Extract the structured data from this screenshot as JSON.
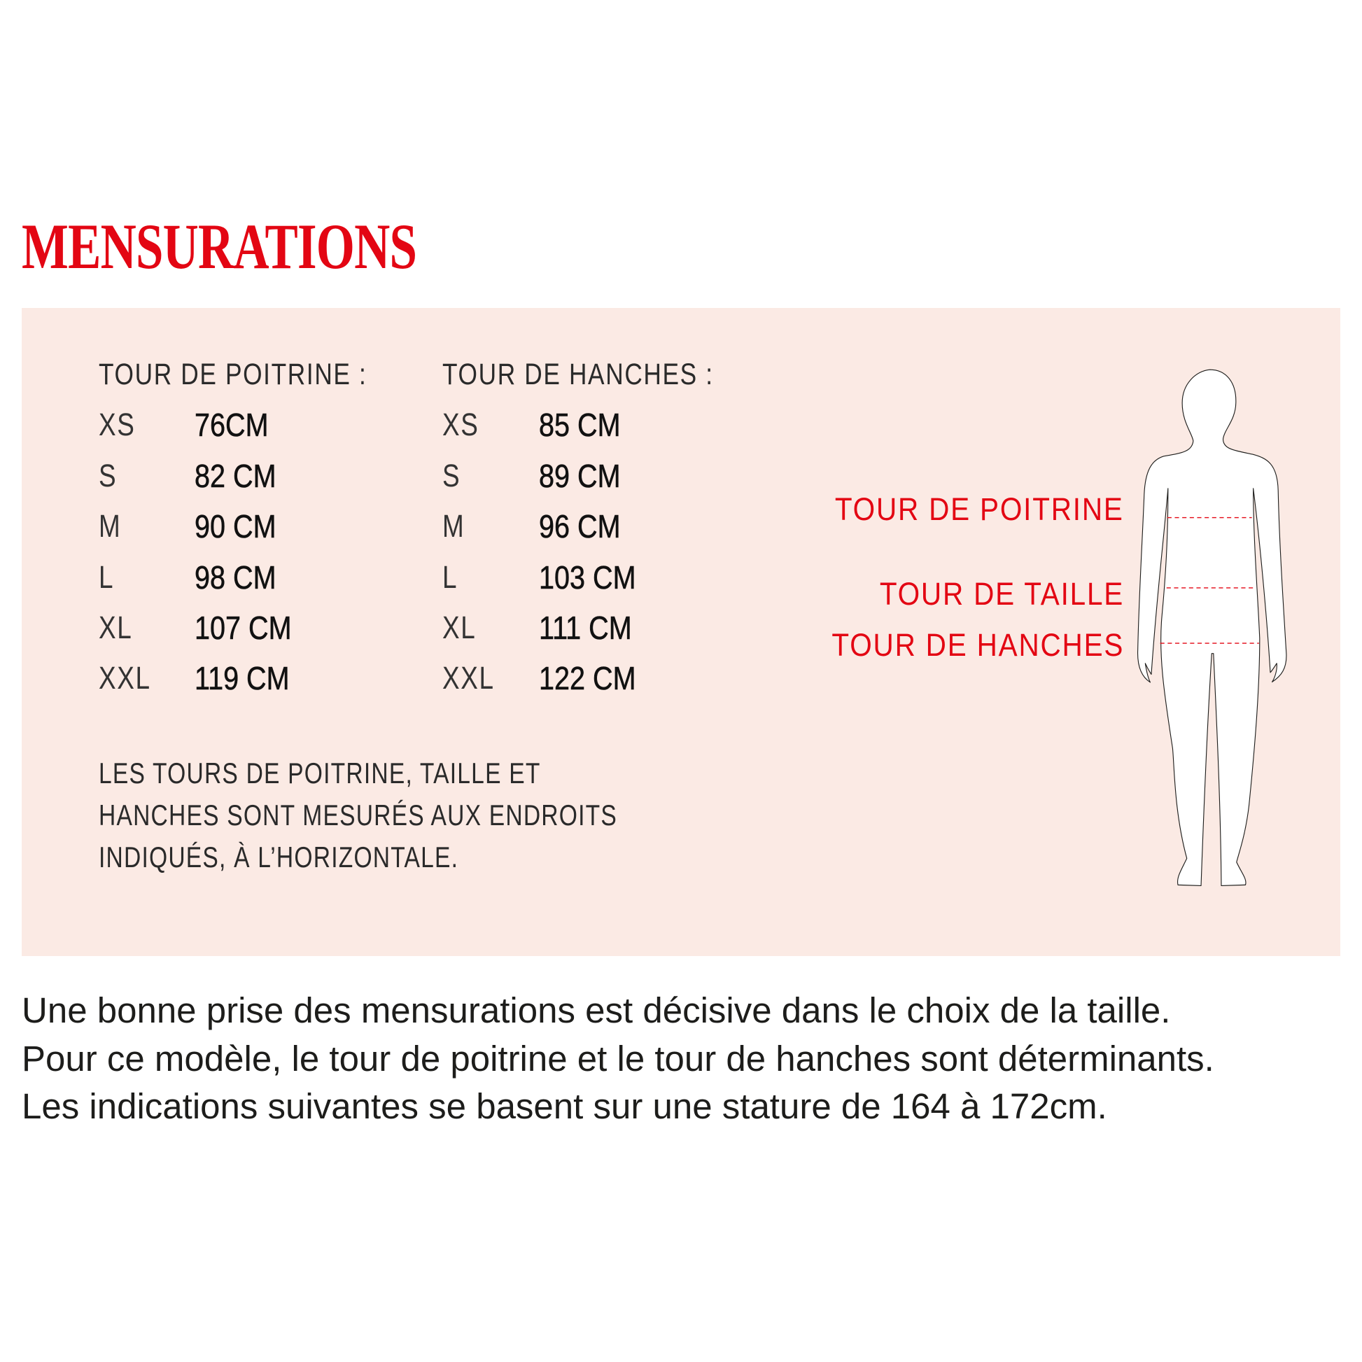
{
  "title": "MENSURATIONS",
  "colors": {
    "accent": "#e30613",
    "panel_bg": "#fbeae4",
    "text": "#1d1d1b"
  },
  "chest_table": {
    "header": "TOUR DE POITRINE :",
    "rows": [
      {
        "size": "XS",
        "value": "76CM"
      },
      {
        "size": "S",
        "value": "82 CM"
      },
      {
        "size": "M",
        "value": "90 CM"
      },
      {
        "size": "L",
        "value": "98 CM"
      },
      {
        "size": "XL",
        "value": "107 CM"
      },
      {
        "size": "XXL",
        "value": "119 CM"
      }
    ]
  },
  "hips_table": {
    "header": "TOUR DE HANCHES :",
    "rows": [
      {
        "size": "XS",
        "value": "85 CM"
      },
      {
        "size": "S",
        "value": "89 CM"
      },
      {
        "size": "M",
        "value": "96 CM"
      },
      {
        "size": "L",
        "value": "103 CM"
      },
      {
        "size": "XL",
        "value": "111 CM"
      },
      {
        "size": "XXL",
        "value": "122 CM"
      }
    ]
  },
  "note": [
    "LES TOURS DE POITRINE, TAILLE ET",
    "HANCHES SONT MESURÉS AUX ENDROITS",
    "INDIQUÉS, À  L’HORIZONTALE."
  ],
  "figure_labels": {
    "chest": "TOUR DE POITRINE",
    "waist": "TOUR DE TAILLE",
    "hips": "TOUR DE HANCHES"
  },
  "figure_icon": "body-silhouette-icon",
  "paragraph": [
    "Une bonne prise des mensurations est décisive dans le choix de la taille.",
    "Pour ce modèle, le tour de poitrine et le tour de hanches sont déterminants.",
    "Les indications suivantes se basent sur une stature de 164 à 172cm."
  ]
}
